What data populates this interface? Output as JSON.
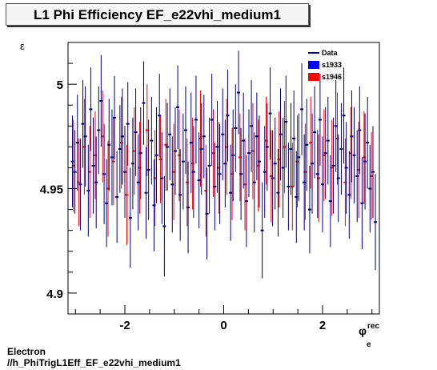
{
  "title": "L1 Phi Efficiency EF_e22vhi_medium1",
  "footer": {
    "line1": "Electron",
    "line2": "//h_PhiTrigL1Eff_EF_e22vhi_medium1"
  },
  "chart_data": {
    "type": "scatter",
    "title": "L1 Phi Efficiency EF_e22vhi_medium1",
    "ylabel": "ε",
    "xlabel_main": "φ",
    "xlabel_sup": "rec",
    "xlabel_sub": "e",
    "xlim": [
      -3.15,
      3.15
    ],
    "ylim": [
      4.89,
      5.02
    ],
    "x_ticks": [
      -2,
      0,
      2
    ],
    "x_tick_labels": [
      "-2",
      "0",
      "2"
    ],
    "y_ticks": [
      4.9,
      4.95,
      5
    ],
    "y_tick_labels": [
      "4.9",
      "4.95",
      "5"
    ],
    "legend_position": "top-right",
    "legend": [
      {
        "label": "Data",
        "style": "line",
        "color": "#000080"
      },
      {
        "label": "s1933",
        "style": "box",
        "color": "#0000ff"
      },
      {
        "label": "s1946",
        "style": "box",
        "color": "#ff0000"
      }
    ],
    "series": [
      {
        "name": "s1933",
        "color": "#000080",
        "x": [
          -3.06,
          -3.01,
          -2.96,
          -2.9,
          -2.85,
          -2.8,
          -2.74,
          -2.69,
          -2.64,
          -2.58,
          -2.53,
          -2.48,
          -2.42,
          -2.37,
          -2.32,
          -2.26,
          -2.21,
          -2.16,
          -2.1,
          -2.05,
          -2.0,
          -1.94,
          -1.89,
          -1.84,
          -1.78,
          -1.73,
          -1.68,
          -1.62,
          -1.57,
          -1.52,
          -1.46,
          -1.41,
          -1.36,
          -1.3,
          -1.25,
          -1.2,
          -1.14,
          -1.09,
          -1.04,
          -0.98,
          -0.93,
          -0.88,
          -0.82,
          -0.77,
          -0.72,
          -0.66,
          -0.61,
          -0.56,
          -0.5,
          -0.45,
          -0.4,
          -0.34,
          -0.29,
          -0.24,
          -0.18,
          -0.13,
          -0.08,
          -0.02,
          0.03,
          0.08,
          0.14,
          0.19,
          0.24,
          0.3,
          0.35,
          0.4,
          0.46,
          0.51,
          0.56,
          0.62,
          0.67,
          0.72,
          0.78,
          0.83,
          0.88,
          0.94,
          0.99,
          1.04,
          1.1,
          1.15,
          1.2,
          1.26,
          1.31,
          1.36,
          1.42,
          1.47,
          1.52,
          1.58,
          1.63,
          1.68,
          1.74,
          1.79,
          1.84,
          1.9,
          1.95,
          2.0,
          2.06,
          2.11,
          2.16,
          2.22,
          2.27,
          2.32,
          2.38,
          2.43,
          2.48,
          2.54,
          2.59,
          2.64,
          2.7,
          2.75,
          2.8,
          2.86,
          2.91,
          2.96,
          3.02,
          3.07
        ],
        "y": [
          4.963,
          4.958,
          4.972,
          4.952,
          4.981,
          4.975,
          4.949,
          4.988,
          4.961,
          4.953,
          4.978,
          4.992,
          4.957,
          4.943,
          4.971,
          4.965,
          4.984,
          4.946,
          4.969,
          4.975,
          4.958,
          4.981,
          4.936,
          4.962,
          4.977,
          4.953,
          4.967,
          4.991,
          4.948,
          4.959,
          4.973,
          4.942,
          4.966,
          4.985,
          4.955,
          4.932,
          4.97,
          4.976,
          4.952,
          4.968,
          4.989,
          4.947,
          4.963,
          4.978,
          4.941,
          4.972,
          4.958,
          4.983,
          4.954,
          4.969,
          4.975,
          4.938,
          4.961,
          4.983,
          4.951,
          4.97,
          4.957,
          4.976,
          4.962,
          4.985,
          4.948,
          4.966,
          4.979,
          4.996,
          4.957,
          4.973,
          4.944,
          4.967,
          4.98,
          4.953,
          4.975,
          4.963,
          4.93,
          4.958,
          4.97,
          4.986,
          4.955,
          4.962,
          4.948,
          4.976,
          4.96,
          4.982,
          4.951,
          4.969,
          4.974,
          4.946,
          4.965,
          4.988,
          4.953,
          4.971,
          4.94,
          4.962,
          4.977,
          4.957,
          4.983,
          4.952,
          4.967,
          4.973,
          4.944,
          4.961,
          4.98,
          4.955,
          4.969,
          4.985,
          4.96,
          4.947,
          4.975,
          4.966,
          4.956,
          4.978,
          4.943,
          4.963,
          4.972,
          4.95,
          4.958,
          4.934
        ],
        "err": [
          0.022,
          0.02,
          0.023,
          0.022,
          0.021,
          0.024,
          0.022,
          0.02,
          0.023,
          0.022,
          0.021,
          0.022,
          0.024,
          0.021,
          0.022,
          0.023,
          0.02,
          0.022,
          0.021,
          0.023,
          0.022,
          0.02,
          0.024,
          0.022,
          0.021,
          0.023,
          0.022,
          0.02,
          0.022,
          0.024,
          0.021,
          0.022,
          0.023,
          0.02,
          0.022,
          0.024,
          0.021,
          0.022,
          0.023,
          0.021,
          0.02,
          0.022,
          0.023,
          0.021,
          0.022,
          0.024,
          0.022,
          0.021,
          0.023,
          0.022,
          0.02,
          0.022,
          0.023,
          0.022,
          0.021,
          0.022,
          0.024,
          0.022,
          0.021,
          0.022,
          0.023,
          0.022,
          0.021,
          0.02,
          0.022,
          0.023,
          0.022,
          0.021,
          0.022,
          0.024,
          0.021,
          0.022,
          0.023,
          0.022,
          0.021,
          0.022,
          0.023,
          0.022,
          0.021,
          0.022,
          0.024,
          0.022,
          0.021,
          0.022,
          0.023,
          0.022,
          0.021,
          0.022,
          0.023,
          0.022,
          0.021,
          0.024,
          0.022,
          0.021,
          0.022,
          0.023,
          0.022,
          0.021,
          0.022,
          0.023,
          0.022,
          0.021,
          0.022,
          0.023,
          0.022,
          0.021,
          0.022,
          0.023,
          0.022,
          0.021,
          0.022,
          0.023,
          0.022,
          0.021,
          0.022,
          0.023
        ]
      },
      {
        "name": "s1946",
        "color": "#ff0000",
        "x": [
          -3.04,
          -2.93,
          -2.82,
          -2.71,
          -2.6,
          -2.45,
          -2.34,
          -2.23,
          -2.07,
          -1.96,
          -1.81,
          -1.7,
          -1.55,
          -1.39,
          -1.28,
          -1.17,
          -1.01,
          -0.9,
          -0.74,
          -0.63,
          -0.47,
          -0.36,
          -0.21,
          -0.1,
          0.06,
          0.17,
          0.33,
          0.43,
          0.59,
          0.7,
          0.86,
          0.96,
          1.12,
          1.23,
          1.39,
          1.49,
          1.65,
          1.76,
          1.92,
          2.03,
          2.19,
          2.3,
          2.46,
          2.57,
          2.73,
          2.84,
          2.99
        ],
        "y": [
          4.961,
          4.953,
          4.97,
          4.958,
          4.966,
          4.975,
          4.95,
          4.963,
          4.972,
          4.947,
          4.968,
          4.96,
          4.978,
          4.955,
          4.964,
          4.971,
          4.958,
          4.966,
          4.953,
          4.962,
          4.974,
          4.949,
          4.967,
          4.96,
          4.97,
          4.957,
          4.965,
          4.952,
          4.968,
          4.961,
          4.973,
          4.956,
          4.964,
          4.97,
          4.951,
          4.963,
          4.958,
          4.972,
          4.955,
          4.966,
          4.96,
          4.974,
          4.953,
          4.967,
          4.959,
          4.965,
          4.956
        ],
        "err": [
          0.022,
          0.021,
          0.023,
          0.022,
          0.021,
          0.022,
          0.023,
          0.021,
          0.022,
          0.024,
          0.021,
          0.022,
          0.022,
          0.023,
          0.021,
          0.022,
          0.023,
          0.022,
          0.021,
          0.022,
          0.023,
          0.022,
          0.021,
          0.022,
          0.023,
          0.022,
          0.021,
          0.022,
          0.023,
          0.022,
          0.021,
          0.022,
          0.023,
          0.022,
          0.021,
          0.022,
          0.023,
          0.022,
          0.021,
          0.022,
          0.023,
          0.022,
          0.021,
          0.022,
          0.023,
          0.022,
          0.021
        ]
      }
    ]
  }
}
